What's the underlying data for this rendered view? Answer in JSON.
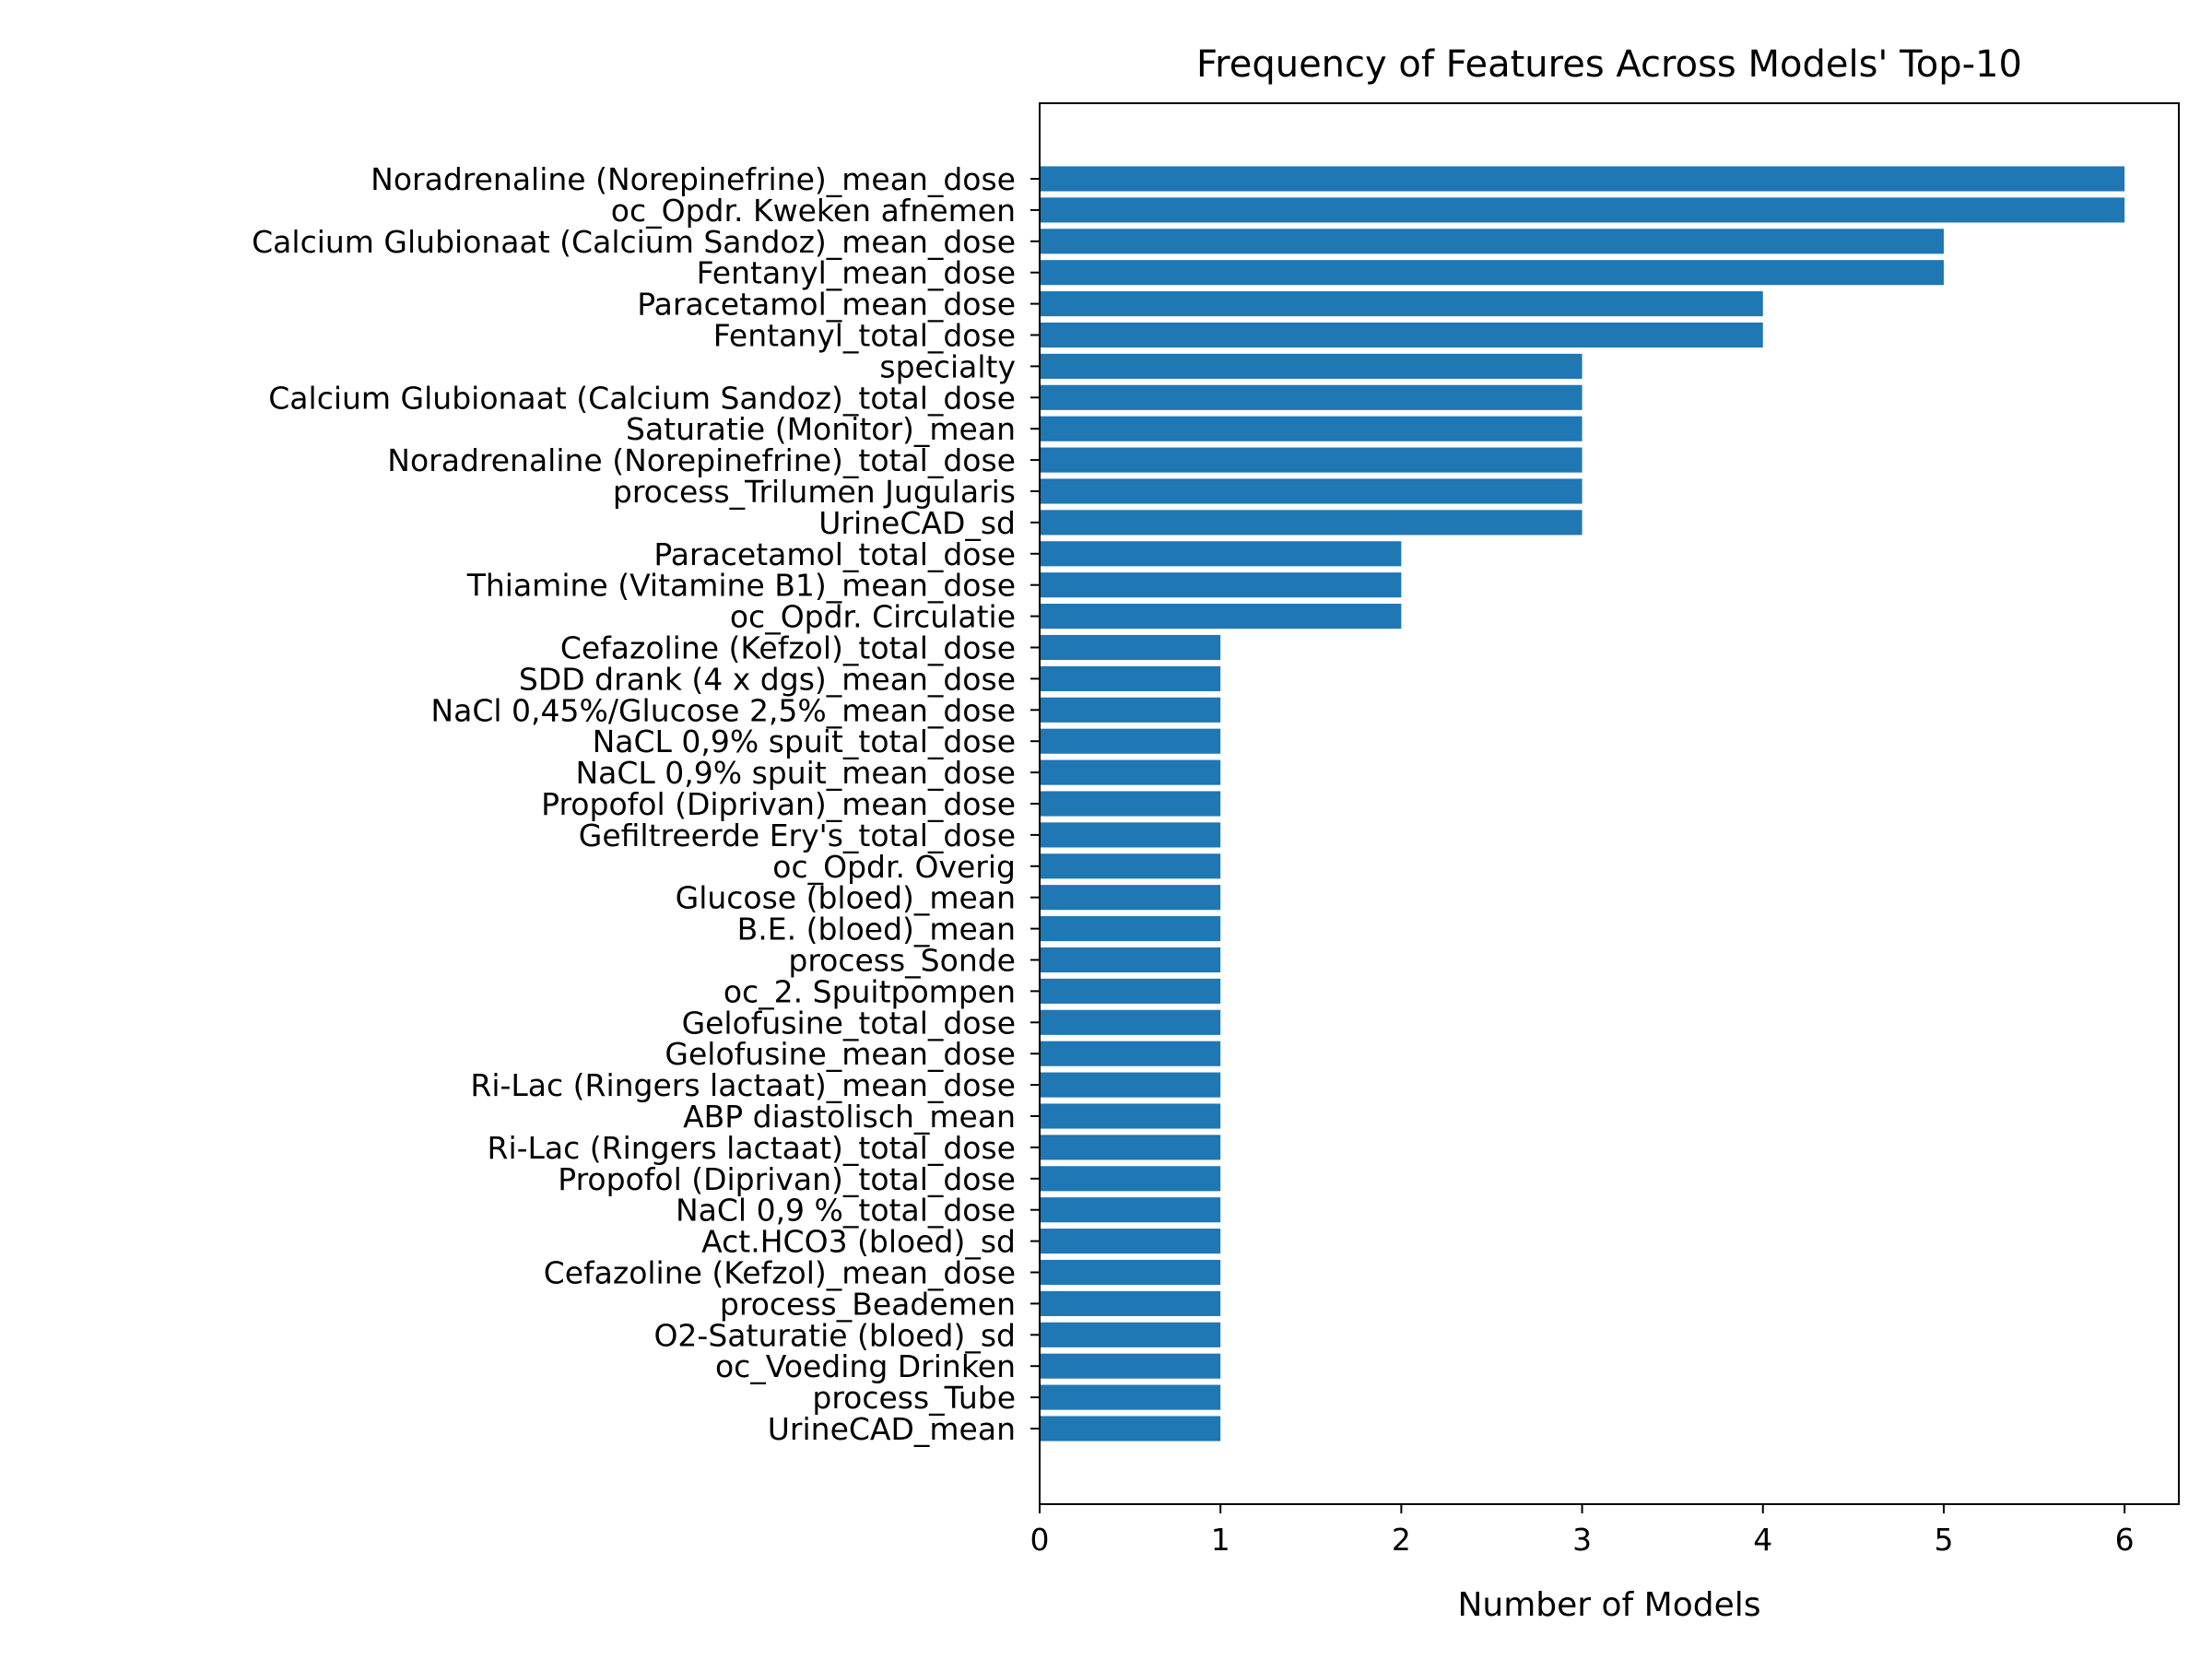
{
  "chart_data": {
    "type": "bar",
    "orientation": "horizontal",
    "title": "Frequency of Features Across Models' Top-10",
    "xlabel": "Number of Models",
    "ylabel": "",
    "xlim": [
      0,
      6.3
    ],
    "xticks": [
      0,
      1,
      2,
      3,
      4,
      5,
      6
    ],
    "grid": false,
    "bar_color": "#1f77b4",
    "categories": [
      "Noradrenaline (Norepinefrine)_mean_dose",
      "oc_Opdr. Kweken afnemen",
      "Calcium Glubionaat (Calcium Sandoz)_mean_dose",
      "Fentanyl_mean_dose",
      "Paracetamol_mean_dose",
      "Fentanyl_total_dose",
      "specialty",
      "Calcium Glubionaat (Calcium Sandoz)_total_dose",
      "Saturatie (Monitor)_mean",
      "Noradrenaline (Norepinefrine)_total_dose",
      "process_Trilumen Jugularis",
      "UrineCAD_sd",
      "Paracetamol_total_dose",
      "Thiamine (Vitamine B1)_mean_dose",
      "oc_Opdr. Circulatie",
      "Cefazoline (Kefzol)_total_dose",
      "SDD drank (4 x dgs)_mean_dose",
      "NaCl 0,45%/Glucose 2,5%_mean_dose",
      "NaCL 0,9% spuit_total_dose",
      "NaCL 0,9% spuit_mean_dose",
      "Propofol (Diprivan)_mean_dose",
      "Gefiltreerde Ery's_total_dose",
      "oc_Opdr. Overig",
      "Glucose (bloed)_mean",
      "B.E. (bloed)_mean",
      "process_Sonde",
      "oc_2. Spuitpompen",
      "Gelofusine_total_dose",
      "Gelofusine_mean_dose",
      "Ri-Lac (Ringers lactaat)_mean_dose",
      "ABP diastolisch_mean",
      "Ri-Lac (Ringers lactaat)_total_dose",
      "Propofol (Diprivan)_total_dose",
      "NaCl 0,9 %_total_dose",
      "Act.HCO3 (bloed)_sd",
      "Cefazoline (Kefzol)_mean_dose",
      "process_Beademen",
      "O2-Saturatie (bloed)_sd",
      "oc_Voeding Drinken",
      "process_Tube",
      "UrineCAD_mean"
    ],
    "values": [
      6,
      6,
      5,
      5,
      4,
      4,
      3,
      3,
      3,
      3,
      3,
      3,
      2,
      2,
      2,
      1,
      1,
      1,
      1,
      1,
      1,
      1,
      1,
      1,
      1,
      1,
      1,
      1,
      1,
      1,
      1,
      1,
      1,
      1,
      1,
      1,
      1,
      1,
      1,
      1,
      1
    ]
  }
}
